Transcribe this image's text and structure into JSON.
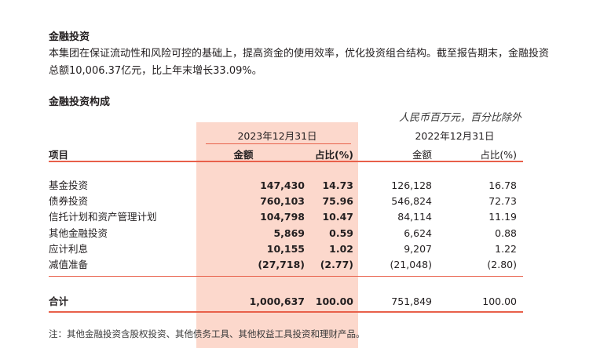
{
  "section1": {
    "title": "金融投资",
    "paragraph": "本集团在保证流动性和风险可控的基础上，提高资金的使用效率，优化投资组合结构。截至报告期末，金融投资总额10,006.37亿元，比上年末增长33.09%。"
  },
  "section2": {
    "title": "金融投资构成",
    "unit": "人民币百万元，百分比除外"
  },
  "table": {
    "item_header": "项目",
    "period_current": "2023年12月31日",
    "period_prior": "2022年12月31日",
    "col_amount": "金额",
    "col_ratio": "占比(%)",
    "rows": [
      {
        "label": "基金投资",
        "amt23": "147,430",
        "pct23": "14.73",
        "amt22": "126,128",
        "pct22": "16.78"
      },
      {
        "label": "债券投资",
        "amt23": "760,103",
        "pct23": "75.96",
        "amt22": "546,824",
        "pct22": "72.73"
      },
      {
        "label": "信托计划和资产管理计划",
        "amt23": "104,798",
        "pct23": "10.47",
        "amt22": "84,114",
        "pct22": "11.19"
      },
      {
        "label": "其他金融投资",
        "amt23": "5,869",
        "pct23": "0.59",
        "amt22": "6,624",
        "pct22": "0.88"
      },
      {
        "label": "应计利息",
        "amt23": "10,155",
        "pct23": "1.02",
        "amt22": "9,207",
        "pct22": "1.22"
      },
      {
        "label": "减值准备",
        "amt23": "(27,718)",
        "pct23": "(2.77)",
        "amt22": "(21,048)",
        "pct22": "(2.80)"
      }
    ],
    "total": {
      "label": "合计",
      "amt23": "1,000,637",
      "pct23": "100.00",
      "amt22": "751,849",
      "pct22": "100.00"
    }
  },
  "note": "注：其他金融投资含股权投资、其他债务工具、其他权益工具投资和理财产品。"
}
